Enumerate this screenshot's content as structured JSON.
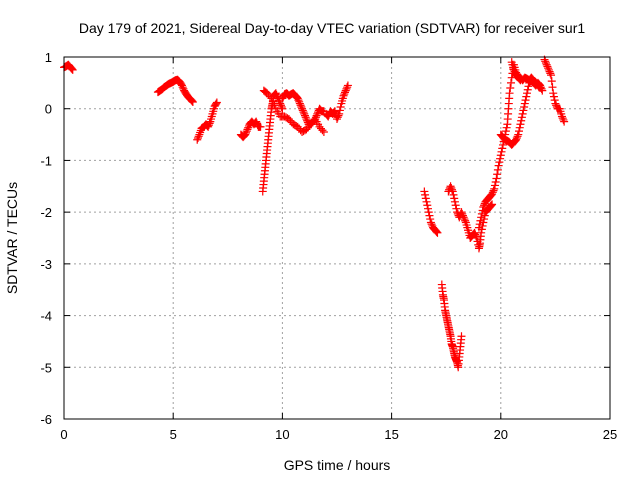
{
  "chart_data": {
    "type": "scatter",
    "title": "Day 179 of 2021, Sidereal Day-to-day VTEC variation (SDTVAR) for receiver sur1",
    "xlabel": "GPS time / hours",
    "ylabel": "SDTVAR / TECUs",
    "xlim": [
      0,
      25
    ],
    "ylim": [
      -6,
      1
    ],
    "xticks": [
      0,
      5,
      10,
      15,
      20,
      25
    ],
    "yticks": [
      1,
      0,
      -1,
      -2,
      -3,
      -4,
      -5,
      -6
    ],
    "grid": true,
    "marker": "+",
    "color": "#ff0000",
    "series": [
      {
        "name": "sur1",
        "segments": [
          [
            [
              0.0,
              0.8
            ],
            [
              0.1,
              0.82
            ],
            [
              0.2,
              0.85
            ],
            [
              0.3,
              0.8
            ],
            [
              0.4,
              0.75
            ]
          ],
          [
            [
              4.3,
              0.32
            ],
            [
              4.4,
              0.35
            ],
            [
              4.5,
              0.38
            ],
            [
              4.6,
              0.42
            ],
            [
              4.7,
              0.45
            ],
            [
              4.8,
              0.48
            ],
            [
              4.9,
              0.5
            ],
            [
              5.0,
              0.52
            ],
            [
              5.1,
              0.55
            ],
            [
              5.2,
              0.56
            ],
            [
              5.3,
              0.52
            ],
            [
              5.4,
              0.45
            ],
            [
              5.5,
              0.35
            ],
            [
              5.6,
              0.28
            ],
            [
              5.7,
              0.22
            ],
            [
              5.8,
              0.18
            ],
            [
              5.9,
              0.13
            ]
          ],
          [
            [
              6.1,
              -0.6
            ],
            [
              6.2,
              -0.5
            ],
            [
              6.3,
              -0.38
            ],
            [
              6.4,
              -0.35
            ],
            [
              6.5,
              -0.3
            ],
            [
              6.6,
              -0.35
            ],
            [
              6.7,
              -0.25
            ],
            [
              6.8,
              -0.1
            ],
            [
              6.9,
              0.05
            ],
            [
              7.0,
              0.12
            ]
          ],
          [
            [
              8.1,
              -0.5
            ],
            [
              8.2,
              -0.55
            ],
            [
              8.3,
              -0.5
            ],
            [
              8.4,
              -0.4
            ],
            [
              8.5,
              -0.3
            ],
            [
              8.6,
              -0.25
            ],
            [
              8.7,
              -0.3
            ],
            [
              8.8,
              -0.25
            ],
            [
              8.9,
              -0.35
            ],
            [
              9.0,
              -0.35
            ]
          ],
          [
            [
              9.1,
              -1.6
            ],
            [
              9.15,
              -1.4
            ],
            [
              9.2,
              -1.2
            ],
            [
              9.25,
              -1.0
            ],
            [
              9.3,
              -0.8
            ],
            [
              9.35,
              -0.6
            ],
            [
              9.4,
              -0.4
            ],
            [
              9.45,
              -0.2
            ],
            [
              9.5,
              0.0
            ],
            [
              9.55,
              0.1
            ],
            [
              9.6,
              0.25
            ],
            [
              9.7,
              0.3
            ],
            [
              9.8,
              0.2
            ],
            [
              9.9,
              0.1
            ],
            [
              10.0,
              0.0
            ]
          ],
          [
            [
              9.15,
              0.35
            ],
            [
              9.3,
              0.3
            ],
            [
              9.5,
              0.2
            ],
            [
              9.7,
              0.0
            ],
            [
              9.9,
              -0.15
            ],
            [
              10.1,
              -0.15
            ],
            [
              10.3,
              -0.2
            ],
            [
              10.5,
              -0.3
            ],
            [
              10.7,
              -0.35
            ],
            [
              10.9,
              -0.45
            ],
            [
              11.1,
              -0.4
            ],
            [
              11.3,
              -0.3
            ],
            [
              11.5,
              -0.2
            ],
            [
              11.7,
              -0.35
            ],
            [
              11.9,
              -0.45
            ]
          ],
          [
            [
              10.0,
              0.2
            ],
            [
              10.1,
              0.28
            ],
            [
              10.2,
              0.3
            ],
            [
              10.3,
              0.25
            ],
            [
              10.4,
              0.28
            ],
            [
              10.5,
              0.3
            ],
            [
              10.6,
              0.25
            ],
            [
              10.7,
              0.2
            ],
            [
              10.8,
              0.1
            ],
            [
              10.9,
              0.0
            ],
            [
              11.0,
              -0.1
            ],
            [
              11.1,
              -0.2
            ],
            [
              11.2,
              -0.3
            ],
            [
              11.3,
              -0.3
            ],
            [
              11.4,
              -0.25
            ],
            [
              11.5,
              -0.2
            ],
            [
              11.6,
              -0.1
            ],
            [
              11.7,
              0.0
            ],
            [
              11.8,
              -0.05
            ],
            [
              11.9,
              -0.05
            ]
          ],
          [
            [
              12.0,
              -0.1
            ],
            [
              12.1,
              -0.15
            ],
            [
              12.2,
              -0.05
            ],
            [
              12.3,
              -0.1
            ],
            [
              12.4,
              -0.05
            ],
            [
              12.5,
              -0.2
            ],
            [
              12.6,
              -0.1
            ],
            [
              12.7,
              0.1
            ],
            [
              12.8,
              0.25
            ],
            [
              12.9,
              0.35
            ],
            [
              13.0,
              0.45
            ]
          ],
          [
            [
              16.5,
              -1.6
            ],
            [
              16.6,
              -1.8
            ],
            [
              16.7,
              -2.0
            ],
            [
              16.8,
              -2.2
            ],
            [
              16.9,
              -2.3
            ],
            [
              17.0,
              -2.35
            ],
            [
              17.1,
              -2.4
            ]
          ],
          [
            [
              17.3,
              -3.4
            ],
            [
              17.35,
              -3.6
            ],
            [
              17.4,
              -3.7
            ],
            [
              17.45,
              -3.9
            ],
            [
              17.5,
              -4.0
            ],
            [
              17.55,
              -4.1
            ],
            [
              17.6,
              -4.2
            ],
            [
              17.65,
              -4.3
            ],
            [
              17.7,
              -4.4
            ],
            [
              17.75,
              -4.55
            ],
            [
              17.8,
              -4.6
            ],
            [
              17.85,
              -4.7
            ],
            [
              17.9,
              -4.8
            ],
            [
              17.95,
              -4.85
            ],
            [
              18.0,
              -4.9
            ],
            [
              18.05,
              -5.0
            ],
            [
              18.1,
              -4.8
            ],
            [
              18.15,
              -4.6
            ],
            [
              18.2,
              -4.4
            ]
          ],
          [
            [
              17.6,
              -1.6
            ],
            [
              17.7,
              -1.5
            ],
            [
              17.8,
              -1.6
            ],
            [
              17.9,
              -1.8
            ],
            [
              18.0,
              -2.0
            ],
            [
              18.1,
              -2.1
            ],
            [
              18.2,
              -2.0
            ],
            [
              18.3,
              -2.1
            ],
            [
              18.4,
              -2.2
            ],
            [
              18.5,
              -2.35
            ],
            [
              18.6,
              -2.5
            ],
            [
              18.7,
              -2.45
            ],
            [
              18.8,
              -2.4
            ],
            [
              18.9,
              -2.5
            ],
            [
              19.0,
              -2.7
            ],
            [
              19.05,
              -2.6
            ],
            [
              19.1,
              -2.4
            ],
            [
              19.2,
              -2.2
            ],
            [
              19.3,
              -2.0
            ],
            [
              19.4,
              -1.95
            ],
            [
              19.5,
              -1.9
            ],
            [
              19.6,
              -1.85
            ]
          ],
          [
            [
              19.0,
              -2.3
            ],
            [
              19.1,
              -2.1
            ],
            [
              19.2,
              -1.9
            ],
            [
              19.3,
              -1.8
            ],
            [
              19.4,
              -1.75
            ],
            [
              19.5,
              -1.7
            ],
            [
              19.6,
              -1.65
            ],
            [
              19.7,
              -1.55
            ],
            [
              19.8,
              -1.35
            ],
            [
              19.9,
              -1.1
            ],
            [
              20.0,
              -0.9
            ],
            [
              20.1,
              -0.7
            ],
            [
              20.2,
              -0.5
            ],
            [
              20.3,
              -0.3
            ],
            [
              20.35,
              0.0
            ],
            [
              20.4,
              0.3
            ],
            [
              20.5,
              0.6
            ],
            [
              20.6,
              0.85
            ],
            [
              20.7,
              0.7
            ],
            [
              20.8,
              0.6
            ],
            [
              20.9,
              0.55
            ]
          ],
          [
            [
              20.0,
              -0.5
            ],
            [
              20.1,
              -0.55
            ],
            [
              20.2,
              -0.6
            ],
            [
              20.3,
              -0.62
            ],
            [
              20.4,
              -0.65
            ],
            [
              20.5,
              -0.7
            ],
            [
              20.6,
              -0.65
            ],
            [
              20.7,
              -0.6
            ],
            [
              20.8,
              -0.5
            ],
            [
              20.9,
              -0.3
            ],
            [
              21.0,
              -0.1
            ],
            [
              21.1,
              0.1
            ],
            [
              21.2,
              0.3
            ],
            [
              21.3,
              0.5
            ],
            [
              21.4,
              0.55
            ],
            [
              21.5,
              0.5
            ],
            [
              21.6,
              0.45
            ],
            [
              21.7,
              0.5
            ],
            [
              21.8,
              0.45
            ],
            [
              21.9,
              0.35
            ]
          ],
          [
            [
              20.5,
              0.9
            ],
            [
              20.6,
              0.75
            ],
            [
              20.7,
              0.65
            ],
            [
              20.8,
              0.6
            ],
            [
              20.9,
              0.6
            ],
            [
              21.0,
              0.55
            ],
            [
              21.1,
              0.6
            ],
            [
              21.2,
              0.58
            ],
            [
              21.3,
              0.55
            ],
            [
              21.4,
              0.6
            ],
            [
              21.5,
              0.55
            ],
            [
              21.6,
              0.5
            ],
            [
              21.7,
              0.45
            ],
            [
              21.8,
              0.4
            ]
          ],
          [
            [
              22.0,
              0.95
            ],
            [
              22.1,
              0.85
            ],
            [
              22.2,
              0.75
            ],
            [
              22.3,
              0.65
            ],
            [
              22.4,
              0.3
            ],
            [
              22.5,
              0.1
            ],
            [
              22.6,
              0.0
            ],
            [
              22.7,
              0.0
            ],
            [
              22.8,
              -0.15
            ],
            [
              22.9,
              -0.25
            ]
          ]
        ]
      }
    ]
  }
}
